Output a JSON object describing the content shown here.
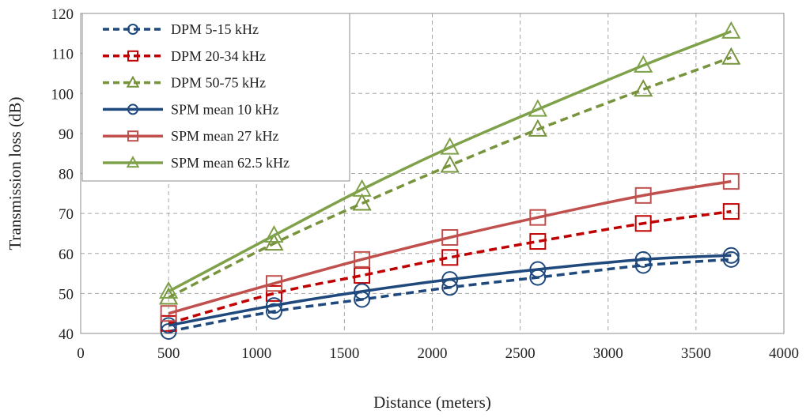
{
  "chart_data": {
    "type": "line",
    "title": "",
    "xlabel": "Distance (meters)",
    "ylabel": "Transmission loss (dB)",
    "xlim": [
      0,
      4000
    ],
    "ylim": [
      40,
      120
    ],
    "x_ticks": [
      0,
      500,
      1000,
      1500,
      2000,
      2500,
      3000,
      3500,
      4000
    ],
    "y_ticks": [
      40,
      50,
      60,
      70,
      80,
      90,
      100,
      110,
      120
    ],
    "grid": true,
    "legend_position": "top-left",
    "x": [
      500,
      1100,
      1600,
      2100,
      2600,
      3200,
      3700
    ],
    "series": [
      {
        "name": "DPM 5-15 kHz",
        "marker": "circle",
        "line": "dashed",
        "color": "#1f497d",
        "values": [
          40.5,
          45.5,
          48.5,
          51.5,
          54,
          57,
          58.5
        ]
      },
      {
        "name": "DPM 20-34 kHz",
        "marker": "square",
        "line": "dashed",
        "color": "#c00000",
        "values": [
          42.5,
          50,
          54.5,
          59,
          63,
          67.5,
          70.5
        ]
      },
      {
        "name": "DPM 50-75 kHz",
        "marker": "triangle",
        "line": "dashed",
        "color": "#77933c",
        "values": [
          49,
          62.5,
          72.5,
          82,
          91,
          101,
          109
        ]
      },
      {
        "name": "SPM mean 10 kHz",
        "marker": "circle",
        "line": "solid",
        "color": "#1f497d",
        "values": [
          42,
          47,
          50.5,
          53.5,
          56,
          58.5,
          59.5
        ]
      },
      {
        "name": "SPM mean 27 kHz",
        "marker": "square",
        "line": "solid",
        "color": "#c0504d",
        "values": [
          45,
          52.5,
          58.5,
          64,
          69,
          74.5,
          78
        ]
      },
      {
        "name": "SPM mean 62.5 kHz",
        "marker": "triangle",
        "line": "solid",
        "color": "#7ea14a",
        "values": [
          50.5,
          64.5,
          76,
          86.5,
          96,
          107,
          115.5
        ]
      }
    ]
  }
}
